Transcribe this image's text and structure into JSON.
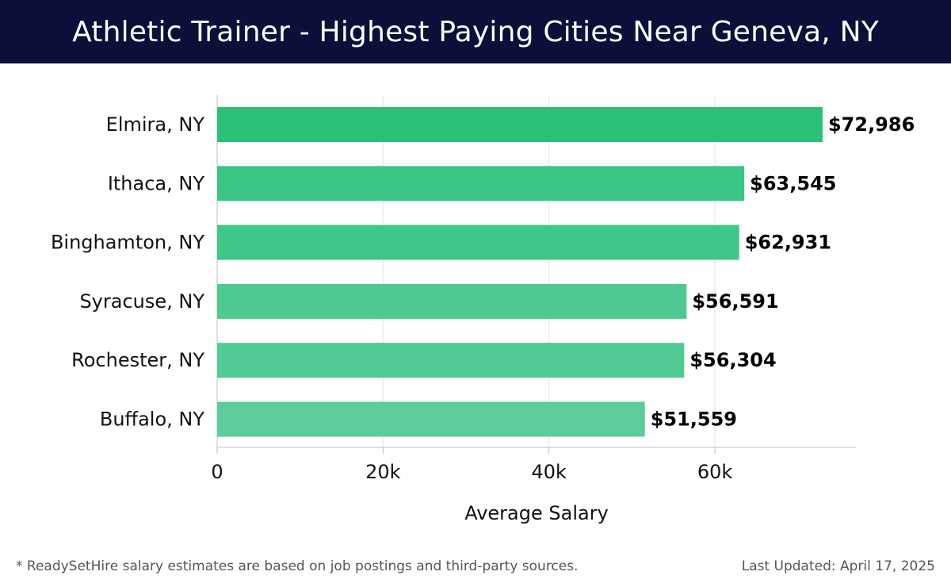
{
  "header": {
    "title": "Athletic Trainer - Highest Paying Cities Near Geneva, NY"
  },
  "chart_data": {
    "type": "bar",
    "orientation": "horizontal",
    "title": "Athletic Trainer - Highest Paying Cities Near Geneva, NY",
    "xlabel": "Average Salary",
    "ylabel": "",
    "categories": [
      "Elmira, NY",
      "Ithaca, NY",
      "Binghamton, NY",
      "Syracuse, NY",
      "Rochester, NY",
      "Buffalo, NY"
    ],
    "values": [
      72986,
      63545,
      62931,
      56591,
      56304,
      51559
    ],
    "data_labels": [
      "$72,986",
      "$63,545",
      "$62,931",
      "$56,591",
      "$56,304",
      "$51,559"
    ],
    "x_ticks": [
      0,
      20000,
      40000,
      60000
    ],
    "x_tick_labels": [
      "0",
      "20k",
      "40k",
      "60k"
    ],
    "xlim": [
      0,
      77000
    ],
    "grid": true,
    "colors": [
      "#2bbf77",
      "#3bc585",
      "#40c688",
      "#4ec990",
      "#50ca92",
      "#5ccd99"
    ]
  },
  "footer": {
    "note": "* ReadySetHire salary estimates are based on job postings and third-party sources.",
    "updated": "Last Updated: April 17, 2025"
  }
}
